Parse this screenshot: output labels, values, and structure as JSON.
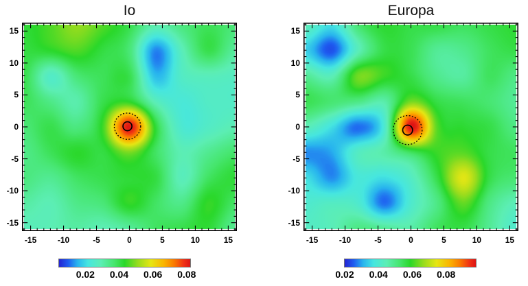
{
  "figure": {
    "background": "#ffffff",
    "text_color": "#000000",
    "frame_color": "#000000"
  },
  "colormap": [
    {
      "t": 0.0,
      "c": "#2424d2"
    },
    {
      "t": 0.07,
      "c": "#1e5df0"
    },
    {
      "t": 0.14,
      "c": "#28b4ee"
    },
    {
      "t": 0.22,
      "c": "#46e6e0"
    },
    {
      "t": 0.32,
      "c": "#5ceeb4"
    },
    {
      "t": 0.42,
      "c": "#46e66e"
    },
    {
      "t": 0.5,
      "c": "#2ad82a"
    },
    {
      "t": 0.6,
      "c": "#96dc1e"
    },
    {
      "t": 0.7,
      "c": "#e6e614"
    },
    {
      "t": 0.8,
      "c": "#fab400"
    },
    {
      "t": 0.88,
      "c": "#fa7800"
    },
    {
      "t": 0.95,
      "c": "#f03214"
    },
    {
      "t": 1.0,
      "c": "#dc1414"
    }
  ],
  "chart_data": [
    {
      "type": "heatmap",
      "title": "Io",
      "x_ticks": [
        -15,
        -10,
        -5,
        0,
        5,
        10,
        15
      ],
      "y_ticks": [
        15,
        10,
        5,
        0,
        -5,
        -10,
        -15
      ],
      "xlim": [
        -16.3,
        16.3
      ],
      "ylim": [
        -16.3,
        16.3
      ],
      "grid_x": [
        -16,
        -12,
        -8,
        -4,
        0,
        4,
        8,
        12,
        16
      ],
      "grid_y": [
        16,
        12,
        8,
        4,
        0,
        -4,
        -8,
        -12,
        -16
      ],
      "values": [
        [
          0.042,
          0.046,
          0.051,
          0.046,
          0.04,
          0.03,
          0.035,
          0.039,
          0.036
        ],
        [
          0.041,
          0.043,
          0.046,
          0.041,
          0.036,
          0.012,
          0.028,
          0.04,
          0.032
        ],
        [
          0.04,
          0.026,
          0.036,
          0.039,
          0.04,
          0.016,
          0.026,
          0.028,
          0.027
        ],
        [
          0.039,
          0.034,
          0.03,
          0.04,
          0.043,
          0.028,
          0.023,
          0.026,
          0.026
        ],
        [
          0.036,
          0.04,
          0.035,
          0.045,
          0.082,
          0.042,
          0.024,
          0.026,
          0.029
        ],
        [
          0.034,
          0.039,
          0.043,
          0.041,
          0.049,
          0.038,
          0.029,
          0.033,
          0.037
        ],
        [
          0.035,
          0.033,
          0.038,
          0.04,
          0.042,
          0.041,
          0.028,
          0.038,
          0.042
        ],
        [
          0.031,
          0.029,
          0.034,
          0.036,
          0.044,
          0.038,
          0.034,
          0.044,
          0.038
        ],
        [
          0.028,
          0.029,
          0.031,
          0.029,
          0.032,
          0.038,
          0.04,
          0.042,
          0.033
        ]
      ],
      "color_range": [
        0.004,
        0.0825
      ],
      "colorbar_ticks": [
        "0.02",
        "0.04",
        "0.06",
        "0.08"
      ],
      "colorbar_tick_values": [
        0.02,
        0.04,
        0.06,
        0.08
      ],
      "annotations": {
        "dotted_circle": {
          "x": -0.3,
          "y": 0.1,
          "r": 2.0
        },
        "solid_circle": {
          "x": -0.3,
          "y": 0.1,
          "r": 0.68
        }
      }
    },
    {
      "type": "heatmap",
      "title": "Europa",
      "x_ticks": [
        -15,
        -10,
        -5,
        0,
        5,
        10,
        15
      ],
      "y_ticks": [
        15,
        10,
        5,
        0,
        -5,
        -10,
        -15
      ],
      "xlim": [
        -16.3,
        16.3
      ],
      "ylim": [
        -16.3,
        16.3
      ],
      "grid_x": [
        -16,
        -12,
        -8,
        -4,
        0,
        4,
        8,
        12,
        16
      ],
      "grid_y": [
        16,
        12,
        8,
        4,
        0,
        -4,
        -8,
        -12,
        -16
      ],
      "values": [
        [
          0.044,
          0.036,
          0.052,
          0.058,
          0.056,
          0.056,
          0.054,
          0.056,
          0.058
        ],
        [
          0.034,
          0.024,
          0.044,
          0.056,
          0.055,
          0.048,
          0.049,
          0.054,
          0.056
        ],
        [
          0.048,
          0.044,
          0.064,
          0.06,
          0.056,
          0.049,
          0.047,
          0.054,
          0.05
        ],
        [
          0.055,
          0.052,
          0.05,
          0.046,
          0.064,
          0.056,
          0.054,
          0.052,
          0.048
        ],
        [
          0.044,
          0.036,
          0.026,
          0.04,
          0.098,
          0.062,
          0.058,
          0.056,
          0.05
        ],
        [
          0.028,
          0.03,
          0.042,
          0.046,
          0.054,
          0.06,
          0.062,
          0.056,
          0.054
        ],
        [
          0.036,
          0.028,
          0.038,
          0.036,
          0.042,
          0.056,
          0.074,
          0.056,
          0.052
        ],
        [
          0.04,
          0.042,
          0.04,
          0.026,
          0.04,
          0.05,
          0.063,
          0.05,
          0.044
        ],
        [
          0.042,
          0.044,
          0.05,
          0.048,
          0.046,
          0.054,
          0.056,
          0.048,
          0.04
        ]
      ],
      "color_range": [
        0.0196,
        0.098
      ],
      "colorbar_ticks": [
        "0.02",
        "0.04",
        "0.06",
        "0.08"
      ],
      "colorbar_tick_values": [
        0.02,
        0.04,
        0.06,
        0.08
      ],
      "annotations": {
        "dotted_circle": {
          "x": -0.5,
          "y": -0.5,
          "r": 2.2
        },
        "solid_circle": {
          "x": -0.5,
          "y": -0.5,
          "r": 0.75
        }
      }
    }
  ],
  "layout_note": ""
}
